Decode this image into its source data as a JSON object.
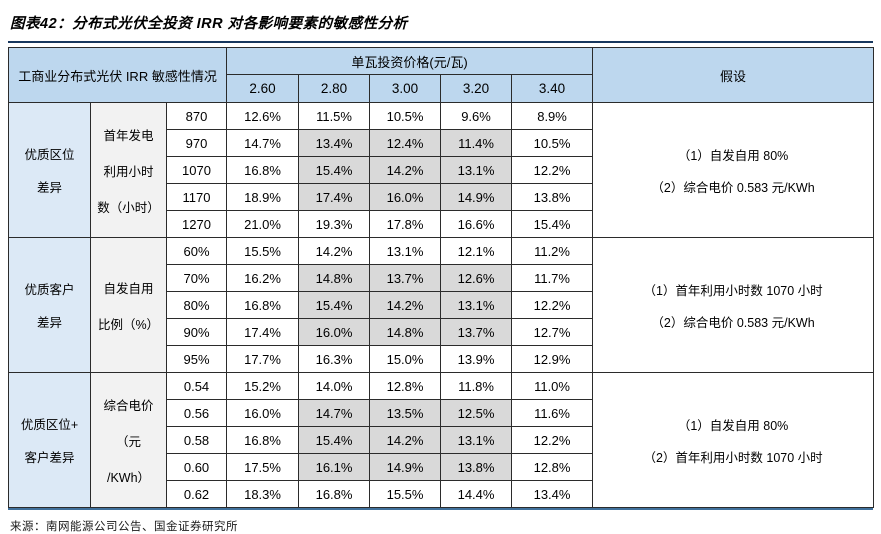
{
  "title": "图表42：分布式光伏全投资 IRR 对各影响要素的敏感性分析",
  "source": "来源：南网能源公司公告、国金证券研究所",
  "colors": {
    "header_fill": "#BDD7EE",
    "group_fill": "#DCE9F6",
    "param_fill": "#F2F2F2",
    "highlight_fill": "#D9D9D9",
    "title_rule": "#17375E",
    "bottom_rule": "#41719C",
    "grid_line": "#2b2b2b"
  },
  "table": {
    "corner_header": "工商业分布式光伏 IRR 敏感性情况",
    "price_header": "单瓦投资价格(元/瓦)",
    "price_columns": [
      "2.60",
      "2.80",
      "3.00",
      "3.20",
      "3.40"
    ],
    "assumption_header": "假设",
    "groups": [
      {
        "group_label": "优质区位差异",
        "group_label_lines": [
          "优质区位",
          "差异"
        ],
        "param_label": "首年发电利用小时数（小时）",
        "param_label_lines": [
          "首年发电",
          "利用小时",
          "数（小时）"
        ],
        "rows": [
          {
            "value": "870",
            "cells": [
              "12.6%",
              "11.5%",
              "10.5%",
              "9.6%",
              "8.9%"
            ]
          },
          {
            "value": "970",
            "cells": [
              "14.7%",
              "13.4%",
              "12.4%",
              "11.4%",
              "10.5%"
            ]
          },
          {
            "value": "1070",
            "cells": [
              "16.8%",
              "15.4%",
              "14.2%",
              "13.1%",
              "12.2%"
            ]
          },
          {
            "value": "1170",
            "cells": [
              "18.9%",
              "17.4%",
              "16.0%",
              "14.9%",
              "13.8%"
            ]
          },
          {
            "value": "1270",
            "cells": [
              "21.0%",
              "19.3%",
              "17.8%",
              "16.6%",
              "15.4%"
            ]
          }
        ],
        "shaded_rows": [
          1,
          2,
          3
        ],
        "shaded_cols": [
          1,
          2,
          3
        ],
        "assumptions": [
          "（1）自发自用 80%",
          "（2）综合电价 0.583 元/KWh"
        ]
      },
      {
        "group_label": "优质客户差异",
        "group_label_lines": [
          "优质客户",
          "差异"
        ],
        "param_label": "自发自用比例（%）",
        "param_label_lines": [
          "自发自用",
          "比例（%）"
        ],
        "rows": [
          {
            "value": "60%",
            "cells": [
              "15.5%",
              "14.2%",
              "13.1%",
              "12.1%",
              "11.2%"
            ]
          },
          {
            "value": "70%",
            "cells": [
              "16.2%",
              "14.8%",
              "13.7%",
              "12.6%",
              "11.7%"
            ]
          },
          {
            "value": "80%",
            "cells": [
              "16.8%",
              "15.4%",
              "14.2%",
              "13.1%",
              "12.2%"
            ]
          },
          {
            "value": "90%",
            "cells": [
              "17.4%",
              "16.0%",
              "14.8%",
              "13.7%",
              "12.7%"
            ]
          },
          {
            "value": "95%",
            "cells": [
              "17.7%",
              "16.3%",
              "15.0%",
              "13.9%",
              "12.9%"
            ]
          }
        ],
        "shaded_rows": [
          1,
          2,
          3
        ],
        "shaded_cols": [
          1,
          2,
          3
        ],
        "assumptions": [
          "（1）首年利用小时数 1070 小时",
          "（2）综合电价 0.583 元/KWh"
        ]
      },
      {
        "group_label": "优质区位+客户差异",
        "group_label_lines": [
          "优质区位+",
          "客户差异"
        ],
        "param_label": "综合电价（元/KWh）",
        "param_label_lines": [
          "综合电价",
          "（元",
          "/KWh）"
        ],
        "rows": [
          {
            "value": "0.54",
            "cells": [
              "15.2%",
              "14.0%",
              "12.8%",
              "11.8%",
              "11.0%"
            ]
          },
          {
            "value": "0.56",
            "cells": [
              "16.0%",
              "14.7%",
              "13.5%",
              "12.5%",
              "11.6%"
            ]
          },
          {
            "value": "0.58",
            "cells": [
              "16.8%",
              "15.4%",
              "14.2%",
              "13.1%",
              "12.2%"
            ]
          },
          {
            "value": "0.60",
            "cells": [
              "17.5%",
              "16.1%",
              "14.9%",
              "13.8%",
              "12.8%"
            ]
          },
          {
            "value": "0.62",
            "cells": [
              "18.3%",
              "16.8%",
              "15.5%",
              "14.4%",
              "13.4%"
            ]
          }
        ],
        "shaded_rows": [
          1,
          2,
          3
        ],
        "shaded_cols": [
          1,
          2,
          3
        ],
        "assumptions": [
          "（1）自发自用 80%",
          "（2）首年利用小时数 1070 小时"
        ]
      }
    ]
  }
}
